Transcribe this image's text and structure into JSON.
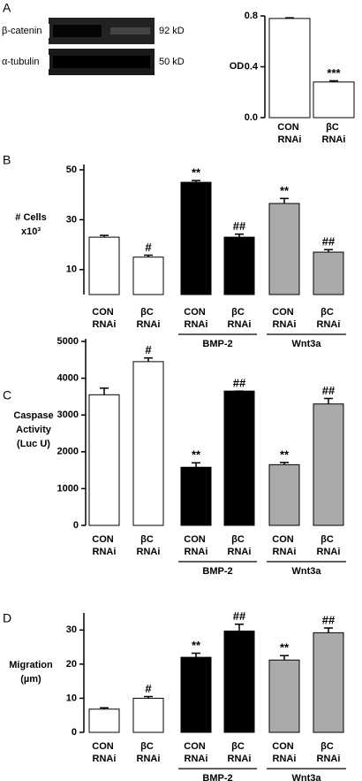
{
  "blot": {
    "panel_label": "A",
    "rows": [
      {
        "protein": "β-catenin",
        "size": "92 kD"
      },
      {
        "protein": "α-tubulin",
        "size": "50 kD"
      }
    ]
  },
  "chart_data": [
    {
      "type": "bar",
      "ylabel": [
        "OD"
      ],
      "categories": [
        "CON RNAi",
        "βC RNAi"
      ],
      "values": [
        0.78,
        0.28
      ],
      "errors": [
        0.005,
        0.01
      ],
      "colors": [
        "#ffffff",
        "#ffffff"
      ],
      "annotations": [
        null,
        "***"
      ],
      "ylim": [
        0,
        0.8
      ],
      "yticks": [
        {
          "value": 0,
          "label": "0.0"
        },
        0.4,
        0.8
      ]
    },
    {
      "type": "bar",
      "panel_label": "B",
      "ylabel": [
        "# Cells",
        "x10³"
      ],
      "categories": [
        "CON RNAi",
        "βC RNAi",
        "CON RNAi",
        "βC RNAi",
        "CON RNAi",
        "βC RNAi"
      ],
      "values": [
        23,
        15,
        45,
        23,
        36.5,
        17
      ],
      "errors": [
        0.7,
        0.8,
        0.7,
        1.2,
        2,
        1
      ],
      "colors": [
        "#ffffff",
        "#ffffff",
        "#000000",
        "#000000",
        "#aaaaaa",
        "#aaaaaa"
      ],
      "annotations": [
        null,
        "#",
        "**",
        "##",
        "**",
        "##"
      ],
      "groups": [
        "BMP-2",
        "Wnt3a"
      ],
      "ylim": [
        0,
        50
      ],
      "yticks": [
        10,
        30,
        50
      ]
    },
    {
      "type": "bar",
      "panel_label": "C",
      "ylabel": [
        "Caspase",
        "Activity",
        "(Luc U)"
      ],
      "categories": [
        "CON RNAi",
        "βC RNAi",
        "CON RNAi",
        "βC RNAi",
        "CON RNAi",
        "βC RNAi"
      ],
      "values": [
        3550,
        4450,
        1580,
        3650,
        1650,
        3300
      ],
      "errors": [
        180,
        100,
        120,
        0,
        60,
        150
      ],
      "colors": [
        "#ffffff",
        "#ffffff",
        "#000000",
        "#000000",
        "#aaaaaa",
        "#aaaaaa"
      ],
      "annotations": [
        null,
        "#",
        "**",
        "##",
        "**",
        "##"
      ],
      "groups": [
        "BMP-2",
        "Wnt3a"
      ],
      "ylim": [
        0,
        5000
      ],
      "yticks": [
        0,
        1000,
        2000,
        3000,
        4000,
        5000
      ]
    },
    {
      "type": "bar",
      "panel_label": "D",
      "ylabel": [
        "Migration",
        "(µm)"
      ],
      "categories": [
        "CON RNAi",
        "βC RNAi",
        "CON RNAi",
        "βC RNAi",
        "CON RNAi",
        "βC RNAi"
      ],
      "values": [
        6.8,
        10,
        22,
        29.7,
        21.2,
        29.2
      ],
      "errors": [
        0.4,
        0.5,
        1.2,
        2,
        1.3,
        1.4
      ],
      "colors": [
        "#ffffff",
        "#ffffff",
        "#000000",
        "#000000",
        "#aaaaaa",
        "#aaaaaa"
      ],
      "annotations": [
        null,
        "#",
        "**",
        "##",
        "**",
        "##"
      ],
      "groups": [
        "BMP-2",
        "Wnt3a"
      ],
      "ylim": [
        0,
        35
      ],
      "yticks": [
        0,
        10,
        20,
        30
      ]
    }
  ]
}
